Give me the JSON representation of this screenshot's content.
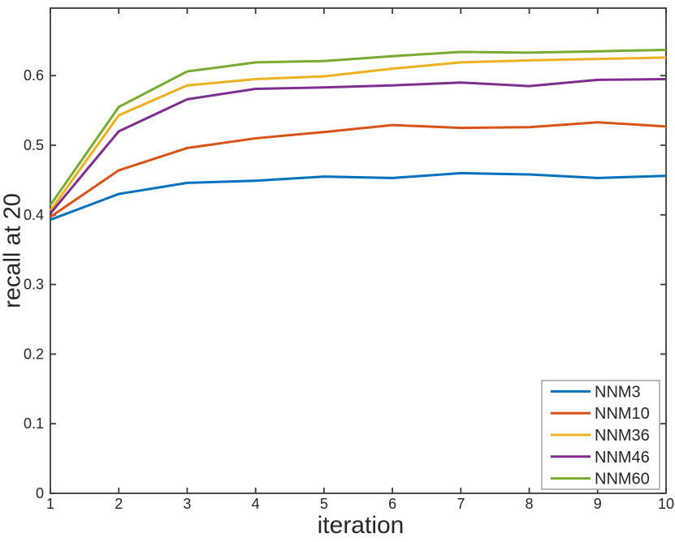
{
  "figure": {
    "background": "#ffffff",
    "axis_color": "#3a3a3a",
    "tick_label_color": "#262626",
    "legend_border_color": "#999999"
  },
  "chart_data": {
    "type": "line",
    "title": "",
    "xlabel": "iteration",
    "ylabel": "recall at 20",
    "xlim": [
      1,
      10
    ],
    "ylim": [
      0,
      0.697
    ],
    "x": [
      1,
      2,
      3,
      4,
      5,
      6,
      7,
      8,
      9,
      10
    ],
    "x_tick_labels": [
      "1",
      "2",
      "3",
      "4",
      "5",
      "6",
      "7",
      "8",
      "9",
      "10"
    ],
    "y_tick_values": [
      0,
      0.1,
      0.2,
      0.3,
      0.4,
      0.5,
      0.6
    ],
    "y_tick_labels": [
      "0",
      "0.1",
      "0.2",
      "0.3",
      "0.4",
      "0.5",
      "0.6"
    ],
    "grid": false,
    "box": true,
    "legend": {
      "position": "bottom-right",
      "entries": [
        "NNM3",
        "NNM10",
        "NNM36",
        "NNM46",
        "NNM60"
      ]
    },
    "series": [
      {
        "name": "NNM3",
        "color": "#0072BD",
        "values": [
          0.393,
          0.43,
          0.446,
          0.449,
          0.455,
          0.453,
          0.46,
          0.458,
          0.453,
          0.456
        ]
      },
      {
        "name": "NNM10",
        "color": "#D95319",
        "values": [
          0.397,
          0.464,
          0.496,
          0.51,
          0.519,
          0.529,
          0.525,
          0.526,
          0.533,
          0.527
        ]
      },
      {
        "name": "NNM36",
        "color": "#EDB120",
        "values": [
          0.406,
          0.543,
          0.586,
          0.595,
          0.599,
          0.61,
          0.619,
          0.622,
          0.624,
          0.626
        ]
      },
      {
        "name": "NNM46",
        "color": "#7E2F8E",
        "values": [
          0.402,
          0.52,
          0.566,
          0.581,
          0.583,
          0.586,
          0.59,
          0.585,
          0.594,
          0.595
        ]
      },
      {
        "name": "NNM60",
        "color": "#77AC30",
        "values": [
          0.414,
          0.555,
          0.606,
          0.619,
          0.621,
          0.628,
          0.634,
          0.633,
          0.635,
          0.637
        ]
      }
    ]
  }
}
